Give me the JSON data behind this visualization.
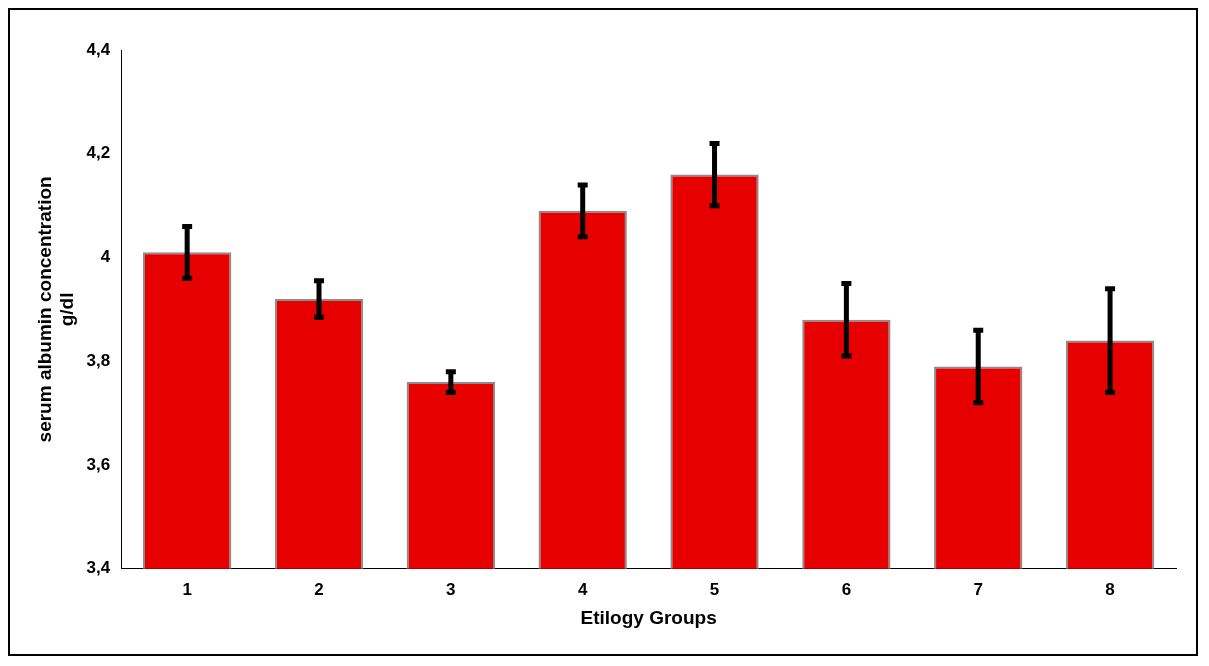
{
  "chart_data": {
    "type": "bar",
    "xlabel": "Etilogy Groups",
    "ylabel": "serum albumin concentration\ng/dl",
    "categories": [
      "1",
      "2",
      "3",
      "4",
      "5",
      "6",
      "7",
      "8"
    ],
    "values": [
      4.01,
      3.92,
      3.76,
      4.09,
      4.16,
      3.88,
      3.79,
      3.84
    ],
    "errors": [
      0.05,
      0.035,
      0.02,
      0.05,
      0.06,
      0.07,
      0.07,
      0.1
    ],
    "color": "#e60000",
    "ylim": [
      3.4,
      4.4
    ],
    "yticks": [
      {
        "value": 3.4,
        "label": "3,4"
      },
      {
        "value": 3.6,
        "label": "3,6"
      },
      {
        "value": 3.8,
        "label": "3,8"
      },
      {
        "value": 4,
        "label": "4"
      },
      {
        "value": 4.2,
        "label": "4,2"
      },
      {
        "value": 4.4,
        "label": "4,4"
      }
    ],
    "grid": false,
    "legend": false
  }
}
